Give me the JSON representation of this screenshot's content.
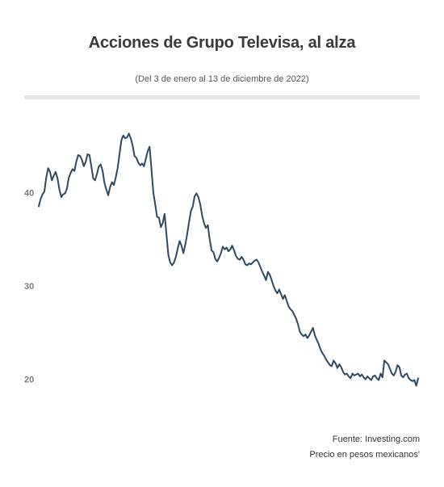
{
  "header": {
    "title": "Acciones de Grupo Televisa, al alza",
    "subtitle": "(Del 3 de enero al 13 de diciembre de 2022)"
  },
  "footer": {
    "source": "Fuente: Investing.com",
    "note": "Precio en pesos mexicanos'"
  },
  "colors": {
    "line": "#2e4a62",
    "rule": "#e6e6e6",
    "tick": "#7a7a7a"
  },
  "chart_data": {
    "type": "line",
    "title": "Acciones de Grupo Televisa, al alza",
    "subtitle": "(Del 3 de enero al 13 de diciembre de 2022)",
    "xlabel": "",
    "ylabel": "",
    "yticks": [
      20,
      30,
      40
    ],
    "ytick_labels": [
      "20",
      "30",
      "40"
    ],
    "ylim": [
      16.5,
      48.5
    ],
    "x_range": [
      "2022-01-03",
      "2022-12-13"
    ],
    "grid": false,
    "series": [
      {
        "values": [
          38.5,
          39.3,
          39.8,
          40.1,
          41.6,
          42.6,
          42.2,
          41.3,
          41.8,
          42.2,
          41.5,
          40.3,
          39.5,
          39.8,
          39.9,
          40.4,
          41.6,
          42.1,
          42.5,
          42.3,
          43.3,
          44.0,
          43.9,
          43.5,
          42.8,
          43.3,
          44.1,
          44.0,
          42.8,
          41.5,
          41.3,
          42.0,
          42.8,
          43.0,
          42.3,
          41.0,
          40.3,
          39.7,
          40.6,
          41.1,
          40.8,
          41.6,
          42.6,
          44.1,
          45.6,
          46.1,
          45.8,
          45.9,
          46.3,
          45.8,
          45.0,
          43.9,
          43.7,
          43.2,
          42.9,
          43.1,
          42.8,
          43.6,
          44.4,
          44.9,
          42.5,
          40.0,
          38.7,
          37.4,
          37.3,
          36.3,
          36.7,
          37.7,
          35.5,
          33.3,
          32.5,
          32.2,
          32.5,
          33.1,
          34.0,
          34.8,
          34.3,
          33.5,
          34.4,
          35.5,
          36.8,
          38.0,
          38.5,
          39.6,
          39.9,
          39.5,
          38.7,
          37.5,
          36.7,
          36.2,
          36.5,
          35.0,
          33.8,
          33.6,
          32.9,
          32.6,
          33.0,
          33.5,
          34.2,
          33.9,
          34.1,
          33.7,
          33.9,
          34.3,
          33.8,
          33.2,
          32.9,
          32.8,
          33.1,
          32.8,
          32.3,
          32.2,
          32.4,
          32.3,
          32.5,
          32.7,
          32.8,
          32.5,
          32.0,
          31.5,
          31.1,
          30.6,
          31.5,
          31.2,
          30.6,
          30.0,
          29.5,
          29.2,
          29.6,
          29.1,
          28.6,
          29.0,
          28.4,
          27.8,
          27.5,
          27.3,
          26.9,
          26.5,
          25.9,
          25.1,
          24.8,
          24.6,
          24.8,
          24.4,
          24.7,
          25.1,
          25.5,
          24.7,
          24.2,
          23.8,
          23.2,
          22.8,
          22.5,
          22.1,
          21.8,
          21.5,
          21.4,
          22.0,
          21.7,
          21.2,
          21.6,
          21.3,
          20.8,
          20.5,
          20.6,
          20.3,
          20.1,
          20.6,
          20.4,
          20.5,
          20.6,
          20.3,
          20.5,
          20.2,
          20.0,
          20.3,
          20.1,
          19.9,
          20.3,
          20.4,
          20.1,
          19.9,
          20.6,
          20.2,
          22.0,
          21.8,
          21.6,
          21.1,
          20.6,
          20.4,
          20.8,
          21.5,
          21.3,
          20.4,
          20.2,
          20.5,
          20.6,
          20.1,
          19.9,
          19.8,
          19.9,
          19.3,
          20.1
        ]
      }
    ]
  }
}
